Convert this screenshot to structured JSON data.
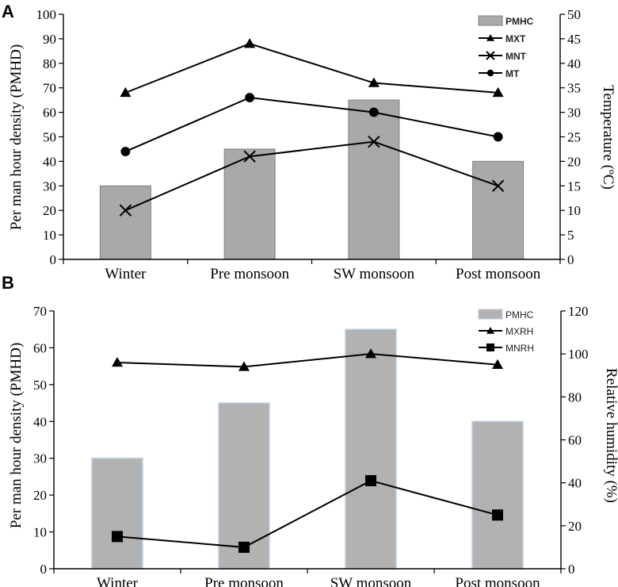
{
  "colors": {
    "bar_a": "#a9a9a9",
    "bar_b": "#b2b2b2",
    "bar_b_edge": "#b9cfe4",
    "line": "#000000",
    "axis": "#000000"
  },
  "chart_data": [
    {
      "panel_label": "A",
      "type": "bar",
      "categories": [
        "Winter",
        "Pre monsoon",
        "SW monsoon",
        "Post monsoon"
      ],
      "bar_series": {
        "name": "PMHC",
        "values": [
          30,
          45,
          65,
          40
        ]
      },
      "line_series": [
        {
          "name": "MXT",
          "marker": "triangle",
          "values": [
            34,
            44,
            36,
            34
          ]
        },
        {
          "name": "MNT",
          "marker": "x",
          "values": [
            10,
            21,
            24,
            15
          ]
        },
        {
          "name": "MT",
          "marker": "circle",
          "values": [
            22,
            33,
            30,
            25
          ]
        }
      ],
      "ylabel": "Per man hour density (PMHD)",
      "y2label": "Temperature (ºC)",
      "ylim": [
        0,
        100
      ],
      "y2lim": [
        0,
        50
      ],
      "yticks": [
        "0",
        "10",
        "20",
        "30",
        "40",
        "50",
        "60",
        "70",
        "80",
        "90",
        "100"
      ],
      "y2ticks": [
        "0",
        "5",
        "10",
        "15",
        "20",
        "25",
        "30",
        "35",
        "40",
        "45",
        "50"
      ],
      "legend": [
        "PMHC",
        "MXT",
        "MNT",
        "MT"
      ],
      "legend_position": "top-right"
    },
    {
      "panel_label": "B",
      "type": "bar",
      "categories": [
        "Winter",
        "Pre monsoon",
        "SW monsoon",
        "Post monsoon"
      ],
      "bar_series": {
        "name": "PMHC",
        "values": [
          30,
          45,
          65,
          40
        ]
      },
      "line_series": [
        {
          "name": "MXRH",
          "marker": "triangle",
          "values": [
            96,
            94,
            100,
            95
          ]
        },
        {
          "name": "MNRH",
          "marker": "square",
          "values": [
            15,
            10,
            41,
            25
          ]
        }
      ],
      "ylabel": "Per man hour density (PMHD)",
      "y2label": "Relative humidity (%)",
      "ylim": [
        0,
        70
      ],
      "y2lim": [
        0,
        120
      ],
      "yticks": [
        "0",
        "10",
        "20",
        "30",
        "40",
        "50",
        "60",
        "70"
      ],
      "y2ticks": [
        "0",
        "20",
        "40",
        "60",
        "80",
        "100",
        "120"
      ],
      "legend": [
        "PMHC",
        "MXRH",
        "MNRH"
      ],
      "legend_position": "top-right"
    }
  ]
}
